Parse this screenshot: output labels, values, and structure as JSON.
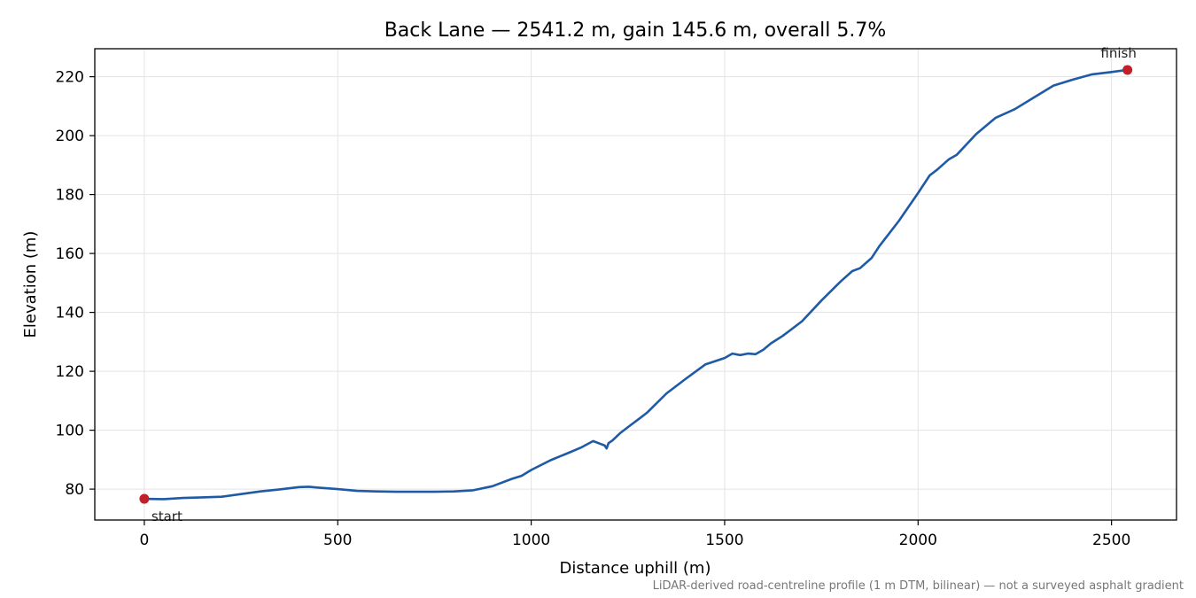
{
  "chart_data": {
    "type": "line",
    "title": "Back Lane — 2541.2 m, gain 145.6 m, overall 5.7%",
    "xlabel": "Distance uphill (m)",
    "ylabel": "Elevation (m)",
    "xlim": [
      -128,
      2668
    ],
    "ylim": [
      69.5,
      229.5
    ],
    "xticks": [
      0,
      500,
      1000,
      1500,
      2000,
      2500
    ],
    "yticks": [
      80,
      100,
      120,
      140,
      160,
      180,
      200,
      220
    ],
    "grid": true,
    "line_color": "#1f5aa6",
    "marker_color": "#c0202a",
    "series": [
      {
        "x": [
          0,
          50,
          100,
          150,
          200,
          250,
          300,
          350,
          400,
          425,
          450,
          500,
          550,
          600,
          650,
          700,
          750,
          800,
          850,
          900,
          950,
          975,
          1000,
          1050,
          1100,
          1130,
          1160,
          1180,
          1190,
          1195,
          1200,
          1210,
          1230,
          1260,
          1280,
          1300,
          1350,
          1400,
          1450,
          1500,
          1520,
          1540,
          1560,
          1580,
          1600,
          1620,
          1650,
          1700,
          1750,
          1800,
          1830,
          1850,
          1880,
          1900,
          1950,
          2000,
          2030,
          2050,
          2080,
          2100,
          2150,
          2200,
          2250,
          2300,
          2350,
          2400,
          2450,
          2500,
          2541.2
        ],
        "y": [
          76.7,
          76.6,
          77.0,
          77.2,
          77.4,
          78.3,
          79.2,
          79.9,
          80.7,
          80.8,
          80.5,
          80.0,
          79.4,
          79.2,
          79.1,
          79.1,
          79.1,
          79.2,
          79.6,
          81.0,
          83.5,
          84.5,
          86.5,
          89.8,
          92.5,
          94.2,
          96.3,
          95.3,
          94.8,
          93.8,
          95.6,
          96.5,
          99.0,
          102.0,
          104.0,
          106.0,
          112.5,
          117.5,
          122.3,
          124.5,
          126.0,
          125.5,
          126.0,
          125.8,
          127.3,
          129.5,
          132.0,
          137.0,
          144.0,
          150.5,
          154.0,
          155.0,
          158.5,
          162.5,
          171.0,
          180.5,
          186.5,
          188.5,
          192.0,
          193.5,
          200.5,
          206.0,
          209.0,
          213.0,
          217.0,
          219.0,
          220.8,
          221.6,
          222.3
        ]
      }
    ],
    "points": [
      {
        "x": 0,
        "y": 76.7,
        "label": "start"
      },
      {
        "x": 2541.2,
        "y": 222.3,
        "label": "finish"
      }
    ],
    "footnote": "LiDAR-derived road-centreline profile (1 m DTM, bilinear) — not a surveyed asphalt gradient"
  }
}
